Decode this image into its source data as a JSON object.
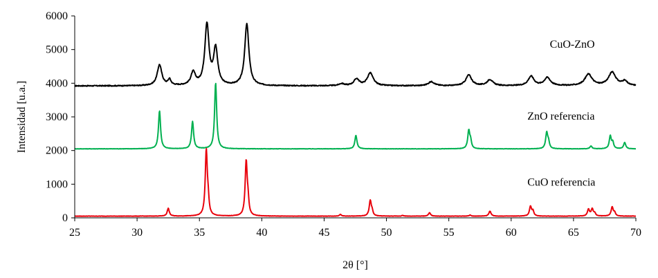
{
  "chart_data": {
    "type": "line",
    "title": "",
    "xlabel": "2θ [°]",
    "ylabel": "Intensidad [u.a.]",
    "xlim": [
      25,
      70
    ],
    "ylim": [
      0,
      6000
    ],
    "x_ticks": [
      25,
      30,
      35,
      40,
      45,
      50,
      55,
      60,
      65,
      70
    ],
    "y_ticks": [
      0,
      1000,
      2000,
      3000,
      4000,
      5000,
      6000
    ],
    "x_tick_labels": [
      "25",
      "30",
      "35",
      "40",
      "45",
      "50",
      "55",
      "60",
      "65",
      "70"
    ],
    "y_tick_labels": [
      "0",
      "1000",
      "2000",
      "3000",
      "4000",
      "5000",
      "6000"
    ],
    "grid": false,
    "legend": "none",
    "series": [
      {
        "name": "CuO-ZnO",
        "color": "#000000",
        "baseline": 3920,
        "peaks": [
          [
            31.8,
            620,
            0.22
          ],
          [
            32.6,
            170,
            0.14
          ],
          [
            34.5,
            380,
            0.22
          ],
          [
            35.6,
            1800,
            0.2
          ],
          [
            36.3,
            1080,
            0.2
          ],
          [
            38.8,
            1830,
            0.2
          ],
          [
            46.4,
            60,
            0.25
          ],
          [
            47.6,
            200,
            0.25
          ],
          [
            48.7,
            380,
            0.28
          ],
          [
            53.6,
            120,
            0.3
          ],
          [
            56.6,
            320,
            0.28
          ],
          [
            58.3,
            180,
            0.28
          ],
          [
            61.6,
            280,
            0.28
          ],
          [
            62.9,
            240,
            0.3
          ],
          [
            66.2,
            340,
            0.35
          ],
          [
            68.1,
            400,
            0.35
          ],
          [
            69.1,
            130,
            0.25
          ]
        ]
      },
      {
        "name": "ZnO referencia",
        "color": "#00b050",
        "baseline": 2050,
        "peaks": [
          [
            31.8,
            1130,
            0.1
          ],
          [
            34.45,
            810,
            0.1
          ],
          [
            36.3,
            1960,
            0.1
          ],
          [
            47.55,
            400,
            0.1
          ],
          [
            56.6,
            540,
            0.1
          ],
          [
            56.75,
            200,
            0.08
          ],
          [
            62.85,
            480,
            0.1
          ],
          [
            63.0,
            180,
            0.08
          ],
          [
            66.4,
            80,
            0.1
          ],
          [
            67.95,
            380,
            0.1
          ],
          [
            68.15,
            180,
            0.08
          ],
          [
            69.1,
            190,
            0.1
          ]
        ]
      },
      {
        "name": "CuO referencia",
        "color": "#e8000b",
        "baseline": 50,
        "peaks": [
          [
            32.5,
            230,
            0.1
          ],
          [
            35.55,
            1940,
            0.1
          ],
          [
            35.7,
            350,
            0.08
          ],
          [
            38.75,
            1620,
            0.1
          ],
          [
            38.9,
            350,
            0.08
          ],
          [
            46.3,
            50,
            0.1
          ],
          [
            48.7,
            460,
            0.1
          ],
          [
            48.85,
            120,
            0.08
          ],
          [
            51.3,
            20,
            0.1
          ],
          [
            53.45,
            100,
            0.1
          ],
          [
            56.7,
            30,
            0.1
          ],
          [
            58.3,
            150,
            0.1
          ],
          [
            61.55,
            290,
            0.1
          ],
          [
            61.75,
            150,
            0.08
          ],
          [
            66.2,
            200,
            0.1
          ],
          [
            66.5,
            210,
            0.1
          ],
          [
            66.7,
            80,
            0.08
          ],
          [
            68.1,
            270,
            0.1
          ],
          [
            68.3,
            100,
            0.08
          ]
        ]
      }
    ],
    "annotations": [
      {
        "text": "CuO-ZnO",
        "x": 63.1,
        "y": 5050
      },
      {
        "text": "ZnO referencia",
        "x": 61.3,
        "y": 2920
      },
      {
        "text": "CuO referencia",
        "x": 61.3,
        "y": 960
      }
    ]
  }
}
